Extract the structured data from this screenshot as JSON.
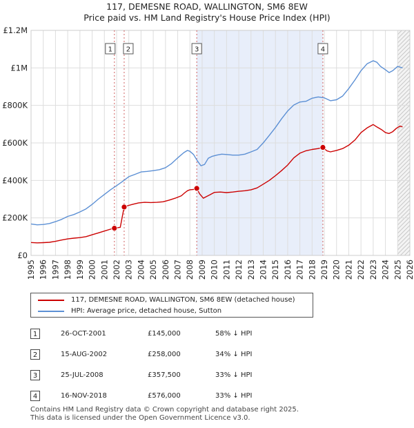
{
  "title": {
    "line1": "117, DEMESNE ROAD, WALLINGTON, SM6 8EW",
    "line2": "Price paid vs. HM Land Registry's House Price Index (HPI)"
  },
  "chart_data": {
    "type": "line",
    "ylim": [
      0,
      1200000
    ],
    "xlim": [
      1995,
      2026
    ],
    "y_ticks": [
      {
        "value": 0,
        "label": "£0"
      },
      {
        "value": 200000,
        "label": "£200K"
      },
      {
        "value": 400000,
        "label": "£400K"
      },
      {
        "value": 600000,
        "label": "£600K"
      },
      {
        "value": 800000,
        "label": "£800K"
      },
      {
        "value": 1000000,
        "label": "£1M"
      },
      {
        "value": 1200000,
        "label": "£1.2M"
      }
    ],
    "x_ticks": [
      "1995",
      "1996",
      "1997",
      "1998",
      "1999",
      "2000",
      "2001",
      "2002",
      "2003",
      "2004",
      "2005",
      "2006",
      "2007",
      "2008",
      "2009",
      "2010",
      "2011",
      "2012",
      "2013",
      "2014",
      "2015",
      "2016",
      "2017",
      "2018",
      "2019",
      "2020",
      "2021",
      "2022",
      "2023",
      "2024",
      "2025",
      "2026"
    ],
    "shaded_range": [
      2008.56,
      2018.88
    ],
    "future_start": 2025.0,
    "series": [
      {
        "name": "117, DEMESNE ROAD, WALLINGTON, SM6 8EW (detached house)",
        "color": "#cc0000",
        "x": [
          1995.0,
          1995.5,
          1996.0,
          1996.5,
          1997.0,
          1997.5,
          1998.0,
          1998.5,
          1999.0,
          1999.5,
          2000.0,
          2000.5,
          2001.0,
          2001.5,
          2001.82,
          2002.0,
          2002.3,
          2002.62,
          2002.9,
          2003.3,
          2003.8,
          2004.3,
          2004.8,
          2005.3,
          2005.8,
          2006.3,
          2006.8,
          2007.3,
          2007.6,
          2007.8,
          2008.0,
          2008.3,
          2008.56,
          2008.8,
          2009.1,
          2009.3,
          2009.6,
          2010.0,
          2010.5,
          2011.0,
          2011.5,
          2012.0,
          2012.5,
          2013.0,
          2013.5,
          2014.0,
          2014.5,
          2015.0,
          2015.5,
          2016.0,
          2016.5,
          2017.0,
          2017.5,
          2018.0,
          2018.5,
          2018.88,
          2019.2,
          2019.5,
          2020.0,
          2020.5,
          2021.0,
          2021.5,
          2022.0,
          2022.5,
          2023.0,
          2023.3,
          2023.7,
          2024.0,
          2024.3,
          2024.6,
          2024.9,
          2025.2,
          2025.4
        ],
        "values": [
          69000,
          67000,
          68000,
          70000,
          75000,
          82000,
          88000,
          92000,
          95000,
          100000,
          110000,
          120000,
          130000,
          140000,
          145000,
          147000,
          150000,
          258000,
          265000,
          272000,
          280000,
          283000,
          282000,
          283000,
          286000,
          295000,
          305000,
          318000,
          335000,
          345000,
          350000,
          352000,
          357500,
          328000,
          305000,
          312000,
          322000,
          336000,
          338000,
          335000,
          338000,
          342000,
          345000,
          350000,
          360000,
          380000,
          400000,
          425000,
          452000,
          482000,
          520000,
          545000,
          558000,
          565000,
          570000,
          576000,
          558000,
          552000,
          560000,
          570000,
          588000,
          615000,
          655000,
          680000,
          698000,
          685000,
          670000,
          655000,
          650000,
          660000,
          678000,
          690000,
          685000
        ]
      },
      {
        "name": "HPI: Average price, detached house, Sutton",
        "color": "#5b8fd4",
        "x": [
          1995.0,
          1995.5,
          1996.0,
          1996.5,
          1997.0,
          1997.5,
          1998.0,
          1998.5,
          1999.0,
          1999.5,
          2000.0,
          2000.5,
          2001.0,
          2001.5,
          2002.0,
          2002.5,
          2003.0,
          2003.5,
          2004.0,
          2004.5,
          2005.0,
          2005.5,
          2006.0,
          2006.5,
          2007.0,
          2007.5,
          2007.8,
          2008.0,
          2008.3,
          2008.6,
          2008.9,
          2009.2,
          2009.5,
          2009.8,
          2010.2,
          2010.6,
          2011.0,
          2011.5,
          2012.0,
          2012.5,
          2013.0,
          2013.5,
          2014.0,
          2014.5,
          2015.0,
          2015.5,
          2016.0,
          2016.5,
          2017.0,
          2017.5,
          2018.0,
          2018.5,
          2019.0,
          2019.5,
          2020.0,
          2020.5,
          2021.0,
          2021.5,
          2022.0,
          2022.5,
          2023.0,
          2023.3,
          2023.6,
          2024.0,
          2024.3,
          2024.6,
          2025.0,
          2025.4
        ],
        "values": [
          168000,
          163000,
          165000,
          170000,
          180000,
          192000,
          208000,
          218000,
          232000,
          248000,
          272000,
          300000,
          325000,
          350000,
          372000,
          395000,
          420000,
          432000,
          445000,
          448000,
          452000,
          457000,
          468000,
          490000,
          520000,
          548000,
          560000,
          555000,
          538000,
          505000,
          478000,
          485000,
          518000,
          528000,
          535000,
          540000,
          538000,
          535000,
          535000,
          540000,
          552000,
          565000,
          600000,
          640000,
          682000,
          728000,
          770000,
          802000,
          818000,
          822000,
          838000,
          845000,
          840000,
          825000,
          830000,
          850000,
          890000,
          935000,
          985000,
          1022000,
          1038000,
          1030000,
          1008000,
          990000,
          975000,
          985000,
          1008000,
          1000000
        ]
      }
    ],
    "sale_markers": [
      {
        "label": "1",
        "x": 2001.82,
        "value": 145000
      },
      {
        "label": "2",
        "x": 2002.62,
        "value": 258000
      },
      {
        "label": "3",
        "x": 2008.56,
        "value": 357500
      },
      {
        "label": "4",
        "x": 2018.88,
        "value": 576000
      }
    ]
  },
  "legend": {
    "property_label": "117, DEMESNE ROAD, WALLINGTON, SM6 8EW (detached house)",
    "hpi_label": "HPI: Average price, detached house, Sutton",
    "property_color": "#cc0000",
    "hpi_color": "#5b8fd4"
  },
  "sales": [
    {
      "num": "1",
      "date": "26-OCT-2001",
      "price": "£145,000",
      "hpi": "58% ↓ HPI"
    },
    {
      "num": "2",
      "date": "15-AUG-2002",
      "price": "£258,000",
      "hpi": "34% ↓ HPI"
    },
    {
      "num": "3",
      "date": "25-JUL-2008",
      "price": "£357,500",
      "hpi": "33% ↓ HPI"
    },
    {
      "num": "4",
      "date": "16-NOV-2018",
      "price": "£576,000",
      "hpi": "33% ↓ HPI"
    }
  ],
  "footer": {
    "line1": "Contains HM Land Registry data © Crown copyright and database right 2025.",
    "line2": "This data is licensed under the Open Government Licence v3.0."
  }
}
